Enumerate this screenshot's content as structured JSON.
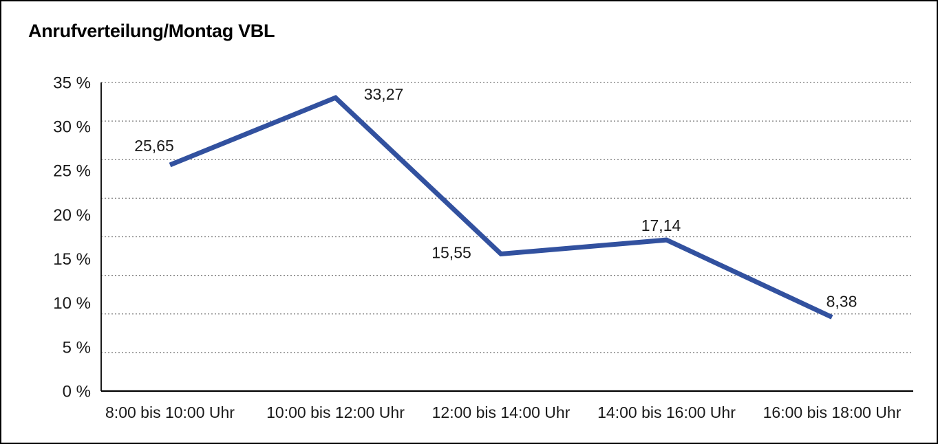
{
  "window": {
    "background": "#ffffff",
    "border_color": "#000000"
  },
  "chart_data": {
    "type": "line",
    "title": "Anrufverteilung/Montag VBL",
    "categories": [
      "8:00 bis 10:00 Uhr",
      "10:00 bis 12:00 Uhr",
      "12:00 bis 14:00 Uhr",
      "14:00 bis 16:00 Uhr",
      "16:00 bis 18:00 Uhr"
    ],
    "series": [
      {
        "name": "Anrufverteilung Montag VBL",
        "values": [
          25.65,
          33.27,
          15.55,
          17.14,
          8.38
        ]
      }
    ],
    "point_labels": [
      "25,65",
      "33,27",
      "15,55",
      "17,14",
      "8,38"
    ],
    "xlabel": "",
    "ylabel": "",
    "ylim": [
      0,
      35
    ],
    "ytick_labels": [
      "35 %",
      "30 %",
      "25 %",
      "20 %",
      "15 %",
      "10 %",
      "5 %",
      "0 %"
    ],
    "grid": "horizontal-dotted",
    "legend": "none",
    "line_color": "#32519F",
    "gridline_color": "#777777",
    "axis_color": "#000000",
    "text_color": "#1a1a1a"
  }
}
